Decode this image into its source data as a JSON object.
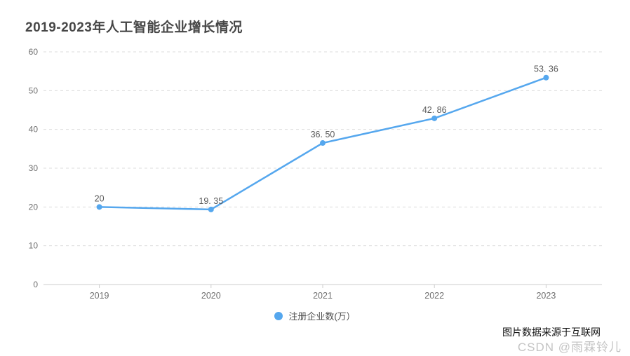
{
  "title": "2019-2023年人工智能企业增长情况",
  "legend": {
    "label": "注册企业数(万）",
    "marker_color": "#55a7ee"
  },
  "watermark": {
    "source_note": "图片数据来源于互联网",
    "csdn": "CSDN @雨霖铃儿"
  },
  "colors": {
    "line": "#55a7ee",
    "point": "#55a7ee",
    "grid": "#dcdcdc",
    "axis": "#cccccc",
    "axis_label": "#6e6e6e",
    "value_label": "#5a5a5a",
    "title": "#474747"
  },
  "chart_data": {
    "type": "line",
    "title": "2019-2023年人工智能企业增长情况",
    "categories": [
      "2019",
      "2020",
      "2021",
      "2022",
      "2023"
    ],
    "series": [
      {
        "name": "注册企业数(万）",
        "values": [
          20,
          19.35,
          36.5,
          42.86,
          53.36
        ]
      }
    ],
    "point_labels": [
      "20",
      "19. 35",
      "36. 50",
      "42. 86",
      "53. 36"
    ],
    "xlabel": "",
    "ylabel": "",
    "ylim": [
      0,
      60
    ],
    "ytick_step": 10,
    "yticks": [
      0,
      10,
      20,
      30,
      40,
      50,
      60
    ],
    "grid": "horizontal-dashed",
    "legend_position": "bottom-center"
  }
}
